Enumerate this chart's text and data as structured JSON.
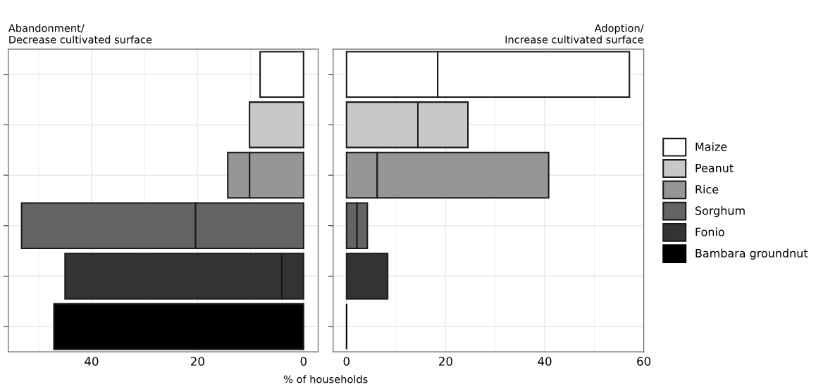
{
  "chart_data": [
    {
      "type": "bar",
      "orientation": "horizontal",
      "stacked": true,
      "title": "Abandonment/\nDecrease cultivated surface",
      "xlabel": "% of households",
      "categories": [
        null,
        null,
        null,
        null,
        null,
        null
      ],
      "series": [
        {
          "color": "#ffffff",
          "values": [
            8.2,
            null,
            null,
            null,
            null,
            null
          ]
        },
        {
          "color": "#c8c8c8",
          "values": [
            null,
            10.2,
            null,
            null,
            null,
            null
          ]
        },
        {
          "color": "#969696",
          "values": [
            null,
            null,
            10.2,
            null,
            null,
            null
          ]
        },
        {
          "color": "#969696",
          "values": [
            null,
            null,
            4.1,
            null,
            null,
            null
          ]
        },
        {
          "color": "#646464",
          "values": [
            null,
            null,
            null,
            20.4,
            null,
            null
          ]
        },
        {
          "color": "#646464",
          "values": [
            null,
            null,
            null,
            32.8,
            null,
            null
          ]
        },
        {
          "color": "#333333",
          "values": [
            null,
            null,
            null,
            null,
            4.1,
            null
          ]
        },
        {
          "color": "#333333",
          "values": [
            null,
            null,
            null,
            null,
            40.9,
            null
          ]
        },
        {
          "color": "#000000",
          "values": [
            null,
            null,
            null,
            null,
            null,
            47.1
          ]
        }
      ],
      "xlim": [
        55.7,
        -2.75
      ],
      "xticks": [
        40,
        20,
        0
      ],
      "grid": true
    },
    {
      "type": "bar",
      "orientation": "horizontal",
      "stacked": true,
      "title": "Adoption/\nIncrease cultivated surface",
      "categories": [
        null,
        null,
        null,
        null,
        null,
        null
      ],
      "series": [
        {
          "name": "Maize",
          "color": "#ffffff",
          "values": [
            18.4,
            null,
            null,
            null,
            null,
            null
          ]
        },
        {
          "color": "#ffffff",
          "values": [
            38.7,
            null,
            null,
            null,
            null,
            null
          ]
        },
        {
          "name": "Peanut",
          "color": "#c8c8c8",
          "values": [
            null,
            14.4,
            null,
            null,
            null,
            null
          ]
        },
        {
          "color": "#c8c8c8",
          "values": [
            null,
            10.1,
            null,
            null,
            null,
            null
          ]
        },
        {
          "name": "Rice",
          "color": "#969696",
          "values": [
            null,
            null,
            6.2,
            null,
            null,
            null
          ]
        },
        {
          "color": "#969696",
          "values": [
            null,
            null,
            34.6,
            null,
            null,
            null
          ]
        },
        {
          "name": "Sorghum",
          "color": "#646464",
          "values": [
            null,
            null,
            null,
            2.1,
            null,
            null
          ]
        },
        {
          "color": "#646464",
          "values": [
            null,
            null,
            null,
            2.1,
            null,
            null
          ]
        },
        {
          "name": "Fonio",
          "color": "#333333",
          "values": [
            null,
            null,
            null,
            null,
            8.3,
            null
          ]
        },
        {
          "name": "Bambara groundnut",
          "color": "#000000",
          "values": [
            null,
            null,
            null,
            null,
            null,
            0
          ]
        }
      ],
      "xlim": [
        -2.7,
        60
      ],
      "xticks": [
        0,
        20,
        40,
        60
      ],
      "grid": true,
      "legend": "right"
    }
  ]
}
